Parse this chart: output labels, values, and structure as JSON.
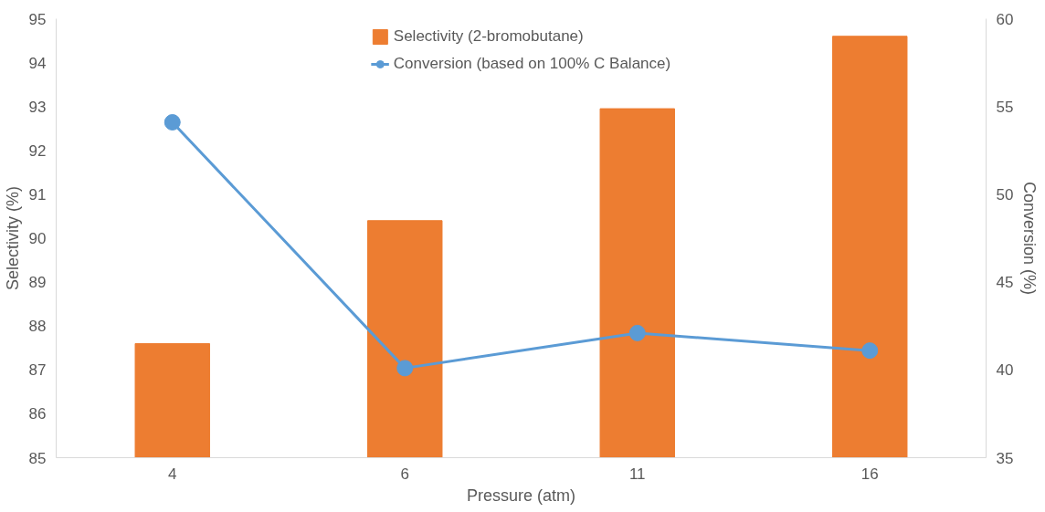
{
  "chart_data": {
    "type": "bar",
    "xlabel": "Pressure (atm)",
    "ylabel": "Selectivity (%)",
    "y2label": "Conversion (%)",
    "categories": [
      "4",
      "6",
      "11",
      "16"
    ],
    "series": [
      {
        "name": "Selectivity (2-bromobutane)",
        "color": "#ed7d31",
        "values": [
          87.6,
          90.4,
          92.95,
          94.6
        ]
      },
      {
        "name": "Conversion (based on 100% C Balance)",
        "type": "line",
        "axis": "y2",
        "color": "#5b9bd5",
        "marker": "circle",
        "values": [
          54.1,
          40.1,
          42.1,
          41.1
        ]
      }
    ],
    "ylim": [
      85,
      95
    ],
    "yticks": [
      85,
      86,
      87,
      88,
      89,
      90,
      91,
      92,
      93,
      94,
      95
    ],
    "y2lim": [
      35,
      60
    ],
    "y2ticks": [
      35,
      40,
      45,
      50,
      55,
      60
    ],
    "grid": false,
    "legend": "top"
  }
}
